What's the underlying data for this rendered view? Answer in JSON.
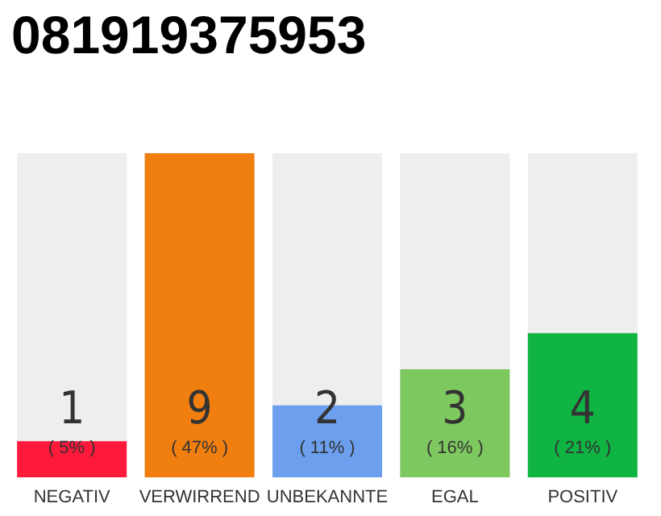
{
  "chart_data": {
    "type": "bar",
    "title": "081919375953",
    "categories": [
      "NEGATIV",
      "VERWIRREND",
      "UNBEKANNTE",
      "EGAL",
      "POSITIV"
    ],
    "values": [
      1,
      9,
      2,
      3,
      4
    ],
    "colors": [
      "#ff1a3c",
      "#f07f10",
      "#6ca0ee",
      "#7ec860",
      "#0fb443"
    ],
    "value_labels": [
      "1\n( 5% )",
      "9\n( 47% )",
      "2\n( 11% )",
      "3\n( 16% )",
      "4\n( 21% )"
    ]
  }
}
